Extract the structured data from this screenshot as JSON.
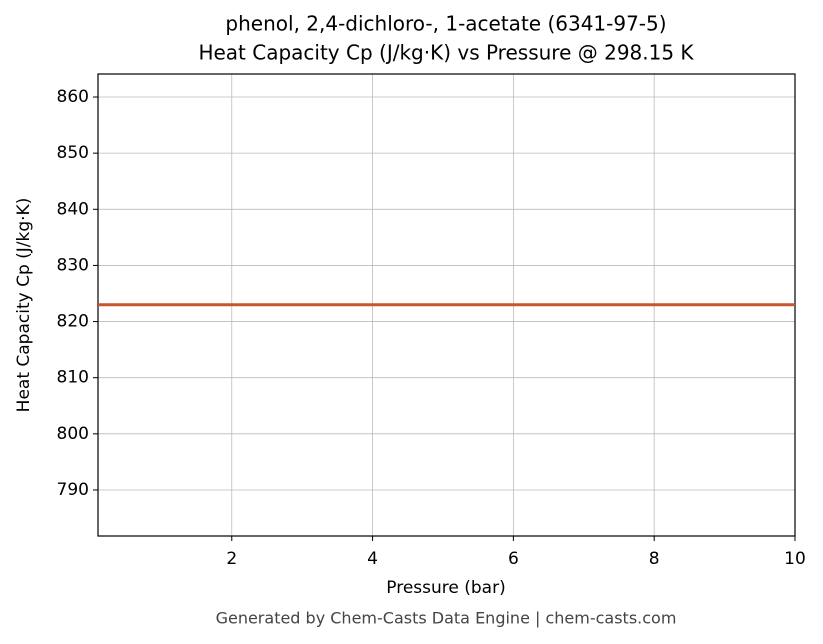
{
  "chart_data": {
    "type": "line",
    "title": "phenol, 2,4-dichloro-, 1-acetate (6341-97-5)",
    "subtitle": "Heat Capacity Cp (J/kg·K) vs Pressure @ 298.15 K",
    "x_label": "Pressure (bar)",
    "y_label": "Heat Capacity Cp (J/kg·K)",
    "x": [
      0.1,
      1,
      2,
      3,
      4,
      5,
      6,
      7,
      8,
      9,
      10
    ],
    "series": [
      {
        "name": "Cp",
        "color": "#c8552b",
        "values": [
          823,
          823,
          823,
          823,
          823,
          823,
          823,
          823,
          823,
          823,
          823
        ]
      }
    ],
    "xlim": [
      0.1,
      10
    ],
    "xticks": [
      2,
      4,
      6,
      8,
      10
    ],
    "ylim": [
      781.8,
      864.1
    ],
    "yticks": [
      790,
      800,
      810,
      820,
      830,
      840,
      850,
      860
    ],
    "grid": true
  },
  "footer": "Generated by Chem-Casts Data Engine | chem-casts.com"
}
